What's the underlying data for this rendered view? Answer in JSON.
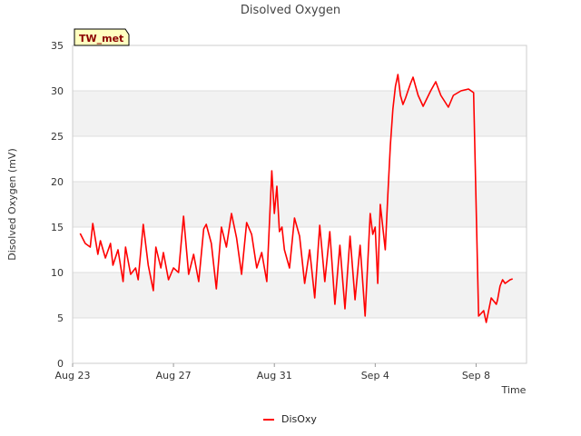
{
  "chart_data": {
    "type": "line",
    "title": "Disolved Oxygen",
    "xlabel": "Time",
    "ylabel": "Disolved Oxygen (mV)",
    "badge": "TW_met",
    "ylim": [
      0,
      35
    ],
    "yticks": [
      0,
      5,
      10,
      15,
      20,
      25,
      30,
      35
    ],
    "xlim": [
      0,
      18
    ],
    "xticks": [
      {
        "pos": 0,
        "label": "Aug 23"
      },
      {
        "pos": 4,
        "label": "Aug 27"
      },
      {
        "pos": 8,
        "label": "Aug 31"
      },
      {
        "pos": 12,
        "label": "Sep 4"
      },
      {
        "pos": 16,
        "label": "Sep 8"
      }
    ],
    "grid": true,
    "legend_position": "bottom-center",
    "series": [
      {
        "name": "DisOxy",
        "color": "#ff0000",
        "x": [
          0.3,
          0.5,
          0.7,
          0.8,
          1.0,
          1.1,
          1.3,
          1.5,
          1.6,
          1.8,
          2.0,
          2.1,
          2.3,
          2.5,
          2.6,
          2.8,
          3.0,
          3.2,
          3.3,
          3.5,
          3.6,
          3.8,
          4.0,
          4.2,
          4.4,
          4.6,
          4.8,
          5.0,
          5.2,
          5.3,
          5.5,
          5.7,
          5.9,
          6.1,
          6.3,
          6.5,
          6.7,
          6.9,
          7.1,
          7.3,
          7.5,
          7.7,
          7.9,
          8.0,
          8.1,
          8.2,
          8.3,
          8.4,
          8.6,
          8.8,
          9.0,
          9.2,
          9.4,
          9.6,
          9.8,
          10.0,
          10.2,
          10.4,
          10.6,
          10.8,
          11.0,
          11.2,
          11.4,
          11.6,
          11.8,
          11.9,
          12.0,
          12.1,
          12.2,
          12.4,
          12.5,
          12.6,
          12.7,
          12.8,
          12.9,
          13.0,
          13.1,
          13.2,
          13.3,
          13.4,
          13.5,
          13.7,
          13.9,
          14.2,
          14.4,
          14.6,
          14.9,
          15.1,
          15.4,
          15.7,
          15.9,
          16.1,
          16.3,
          16.4,
          16.6,
          16.8,
          16.85,
          16.95,
          17.05,
          17.15,
          17.25,
          17.35,
          17.45
        ],
        "values": [
          14.3,
          13.2,
          12.8,
          15.4,
          12.0,
          13.5,
          11.6,
          13.2,
          10.8,
          12.5,
          9.0,
          12.8,
          9.8,
          10.5,
          9.2,
          15.3,
          10.8,
          8.0,
          12.8,
          10.5,
          12.2,
          9.2,
          10.5,
          10.0,
          16.2,
          9.8,
          12.0,
          9.0,
          14.8,
          15.3,
          13.2,
          8.2,
          15.0,
          12.8,
          16.5,
          13.8,
          9.8,
          15.5,
          14.2,
          10.5,
          12.2,
          9.0,
          21.2,
          16.5,
          19.5,
          14.5,
          15.0,
          12.5,
          10.5,
          16.0,
          14.0,
          8.8,
          12.5,
          7.2,
          15.2,
          9.0,
          14.5,
          6.5,
          13.0,
          6.0,
          14.0,
          7.0,
          13.0,
          5.2,
          16.5,
          14.2,
          15.0,
          8.8,
          17.5,
          12.5,
          18.5,
          24.0,
          28.0,
          30.5,
          31.8,
          29.5,
          28.5,
          29.2,
          30.0,
          30.8,
          31.5,
          29.5,
          28.3,
          30.0,
          31.0,
          29.5,
          28.2,
          29.5,
          30.0,
          30.2,
          29.8,
          5.2,
          5.8,
          4.5,
          7.2,
          6.5,
          7.0,
          8.5,
          9.2,
          8.8,
          9.0,
          9.2,
          9.3
        ]
      }
    ]
  }
}
